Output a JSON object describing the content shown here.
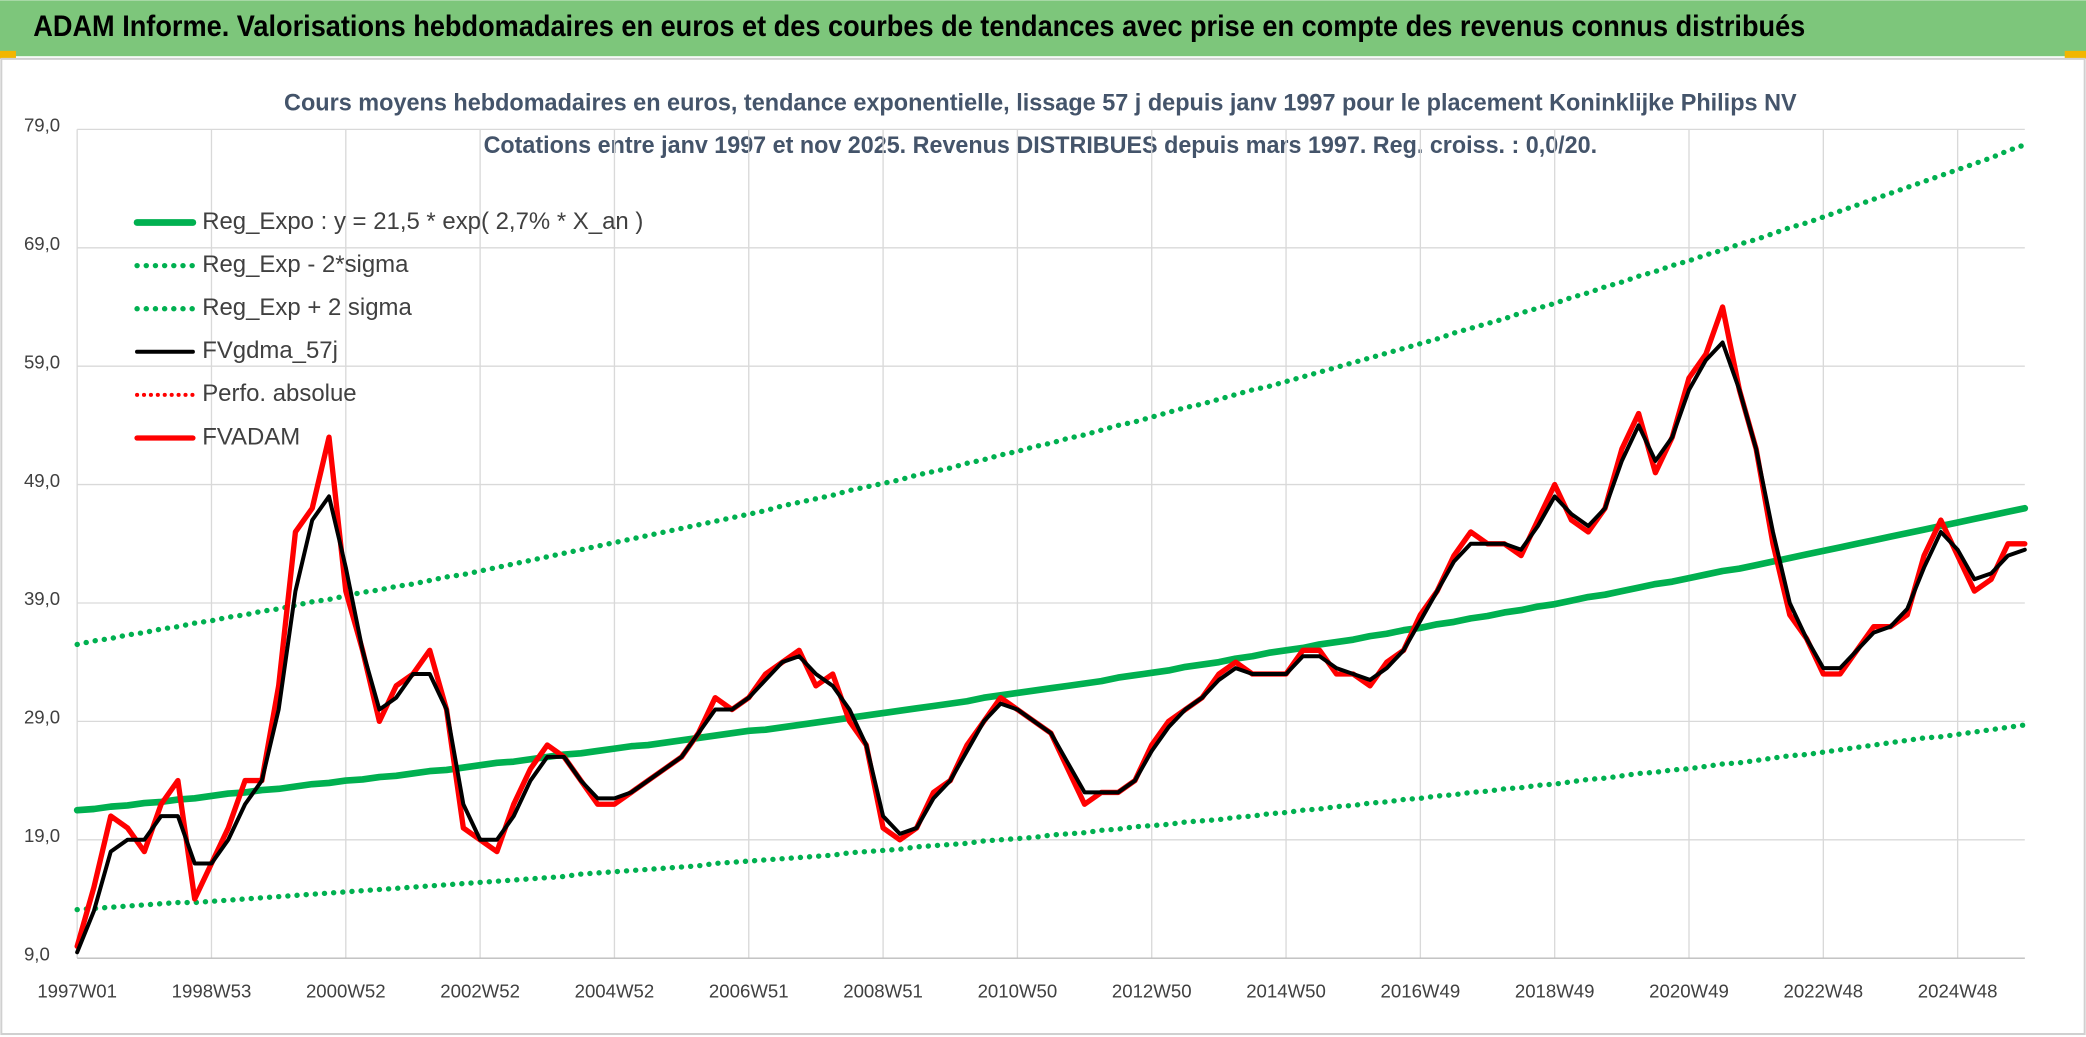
{
  "chart_data": {
    "type": "line",
    "title": "ADAM Informe. Valorisations hebdomadaires en euros et des courbes de tendances avec prise en compte des revenus connus distribués",
    "subtitle": [
      "Cours moyens hebdomadaires en euros, tendance exponentielle, lissage 57 j depuis janv 1997 pour le placement Koninklijke Philips NV",
      "Cotations entre janv 1997 et nov 2025. Revenus DISTRIBUES depuis mars 1997. Reg. croiss. : 0,0/20."
    ],
    "categories": [
      "1997W01",
      null,
      null,
      null,
      null,
      null,
      null,
      null,
      "1998W53",
      null,
      null,
      null,
      null,
      null,
      null,
      null,
      "2000W52",
      null,
      null,
      null,
      null,
      null,
      null,
      null,
      "2002W52",
      null,
      null,
      null,
      null,
      null,
      null,
      null,
      "2004W52",
      null,
      null,
      null,
      null,
      null,
      null,
      null,
      "2006W51",
      null,
      null,
      null,
      null,
      null,
      null,
      null,
      "2008W51",
      null,
      null,
      null,
      null,
      null,
      null,
      null,
      "2010W50",
      null,
      null,
      null,
      null,
      null,
      null,
      null,
      "2012W50",
      null,
      null,
      null,
      null,
      null,
      null,
      null,
      "2014W50",
      null,
      null,
      null,
      null,
      null,
      null,
      null,
      "2016W49",
      null,
      null,
      null,
      null,
      null,
      null,
      null,
      "2018W49",
      null,
      null,
      null,
      null,
      null,
      null,
      null,
      "2020W49",
      null,
      null,
      null,
      null,
      null,
      null,
      null,
      "2022W48",
      null,
      null,
      null,
      null,
      null,
      null,
      null,
      "2024W48",
      null,
      null,
      null,
      null
    ],
    "ylim": [
      9,
      79
    ],
    "yticks": [
      {
        "value": 9,
        "label": "9,0"
      },
      {
        "value": 19,
        "label": "19,0"
      },
      {
        "value": 29,
        "label": "29,0"
      },
      {
        "value": 39,
        "label": "39,0"
      },
      {
        "value": 49,
        "label": "49,0"
      },
      {
        "value": 59,
        "label": "59,0"
      },
      {
        "value": 69,
        "label": "69,0"
      },
      {
        "value": 79,
        "label": "79,0"
      }
    ],
    "grid": true,
    "legend": "upper left",
    "series": [
      {
        "name": "Reg_Expo : y = 21,5 * exp( 2,7% *  X_an )",
        "color": "#00b050",
        "style": "solid",
        "width": 5,
        "values": [
          21.5,
          21.6,
          21.8,
          21.9,
          22.1,
          22.2,
          22.4,
          22.5,
          22.7,
          22.9,
          23.0,
          23.2,
          23.3,
          23.5,
          23.7,
          23.8,
          24.0,
          24.1,
          24.3,
          24.4,
          24.6,
          24.8,
          24.9,
          25.1,
          25.3,
          25.5,
          25.6,
          25.8,
          26.0,
          26.2,
          26.3,
          26.5,
          26.7,
          26.9,
          27.0,
          27.2,
          27.4,
          27.6,
          27.8,
          28.0,
          28.2,
          28.3,
          28.5,
          28.7,
          28.9,
          29.1,
          29.3,
          29.5,
          29.7,
          29.9,
          30.1,
          30.3,
          30.5,
          30.7,
          31.0,
          31.2,
          31.4,
          31.6,
          31.8,
          32.0,
          32.2,
          32.4,
          32.7,
          32.9,
          33.1,
          33.3,
          33.6,
          33.8,
          34.0,
          34.3,
          34.5,
          34.8,
          35.0,
          35.2,
          35.5,
          35.7,
          35.9,
          36.2,
          36.4,
          36.7,
          36.9,
          37.2,
          37.4,
          37.7,
          37.9,
          38.2,
          38.4,
          38.7,
          38.9,
          39.2,
          39.5,
          39.7,
          40.0,
          40.3,
          40.6,
          40.8,
          41.1,
          41.4,
          41.7,
          41.9,
          42.2,
          42.5,
          42.8,
          43.1,
          43.4,
          43.7,
          44.0,
          44.3,
          44.6,
          44.9,
          45.2,
          45.5,
          45.8,
          46.1,
          46.4,
          46.7,
          47.0
        ]
      },
      {
        "name": "Reg_Exp - 2*sigma",
        "color": "#00b050",
        "style": "dotted",
        "width": 4,
        "values": [
          13.1,
          13.2,
          13.3,
          13.4,
          13.5,
          13.6,
          13.7,
          13.7,
          13.8,
          13.9,
          14.0,
          14.1,
          14.2,
          14.3,
          14.4,
          14.5,
          14.6,
          14.7,
          14.8,
          14.9,
          15.0,
          15.1,
          15.2,
          15.3,
          15.4,
          15.5,
          15.6,
          15.7,
          15.8,
          15.9,
          16.1,
          16.2,
          16.3,
          16.4,
          16.5,
          16.6,
          16.7,
          16.8,
          17.0,
          17.1,
          17.2,
          17.3,
          17.4,
          17.5,
          17.6,
          17.7,
          17.9,
          18.0,
          18.1,
          18.2,
          18.4,
          18.5,
          18.6,
          18.7,
          18.9,
          19.0,
          19.1,
          19.2,
          19.4,
          19.5,
          19.6,
          19.8,
          19.9,
          20.1,
          20.2,
          20.3,
          20.5,
          20.6,
          20.7,
          20.9,
          21.0,
          21.2,
          21.3,
          21.5,
          21.6,
          21.8,
          21.9,
          22.1,
          22.2,
          22.4,
          22.5,
          22.7,
          22.8,
          23.0,
          23.1,
          23.3,
          23.4,
          23.6,
          23.7,
          23.9,
          24.1,
          24.2,
          24.4,
          24.6,
          24.7,
          24.9,
          25.0,
          25.2,
          25.4,
          25.5,
          25.7,
          25.9,
          26.1,
          26.2,
          26.4,
          26.6,
          26.8,
          27.0,
          27.2,
          27.4,
          27.6,
          27.7,
          27.9,
          28.1,
          28.3,
          28.5,
          28.7
        ]
      },
      {
        "name": "Reg_Exp + 2 sigma",
        "color": "#00b050",
        "style": "dotted",
        "width": 4,
        "values": [
          35.5,
          35.8,
          36.0,
          36.3,
          36.5,
          36.8,
          37.0,
          37.3,
          37.5,
          37.8,
          38.0,
          38.3,
          38.5,
          38.8,
          39.1,
          39.3,
          39.6,
          39.9,
          40.1,
          40.4,
          40.6,
          40.9,
          41.2,
          41.4,
          41.7,
          42.0,
          42.3,
          42.6,
          42.9,
          43.2,
          43.5,
          43.8,
          44.1,
          44.4,
          44.7,
          45.0,
          45.3,
          45.6,
          45.9,
          46.2,
          46.5,
          46.8,
          47.2,
          47.5,
          47.8,
          48.1,
          48.5,
          48.8,
          49.1,
          49.4,
          49.8,
          50.1,
          50.4,
          50.8,
          51.1,
          51.5,
          51.8,
          52.2,
          52.5,
          52.9,
          53.2,
          53.6,
          54.0,
          54.3,
          54.7,
          55.1,
          55.5,
          55.8,
          56.2,
          56.6,
          57.0,
          57.3,
          57.7,
          58.1,
          58.5,
          58.9,
          59.3,
          59.7,
          60.1,
          60.5,
          60.9,
          61.3,
          61.8,
          62.2,
          62.6,
          63.0,
          63.5,
          63.9,
          64.3,
          64.8,
          65.2,
          65.7,
          66.1,
          66.6,
          67.0,
          67.5,
          67.9,
          68.4,
          68.8,
          69.3,
          69.7,
          70.2,
          70.7,
          71.1,
          71.6,
          72.1,
          72.6,
          73.1,
          73.6,
          74.1,
          74.6,
          75.1,
          75.6,
          76.1,
          76.6,
          77.2,
          77.7
        ]
      },
      {
        "name": "FVgdma_57j",
        "color": "#000000",
        "style": "solid",
        "width": 3,
        "values": [
          9.5,
          13,
          18,
          19,
          19,
          21,
          21,
          17,
          17,
          19,
          22,
          24,
          30,
          40,
          46,
          48,
          42,
          35,
          30,
          31,
          33,
          33,
          30,
          22,
          19,
          19,
          21,
          24,
          26,
          26,
          24,
          22.5,
          22.5,
          23,
          24,
          25,
          26,
          28,
          30,
          30,
          31,
          32.5,
          34,
          34.5,
          33,
          32,
          30,
          27,
          21,
          19.5,
          20,
          22.5,
          24,
          26.5,
          29,
          30.5,
          30,
          29,
          28,
          25.5,
          23,
          23,
          23,
          24,
          26.5,
          28.5,
          30,
          31,
          32.5,
          33.5,
          33,
          33,
          33,
          34.5,
          34.5,
          33.5,
          33,
          32.5,
          33.5,
          35,
          37.5,
          40,
          42.5,
          44,
          44,
          44,
          43.5,
          45.5,
          48,
          46.5,
          45.5,
          47,
          51,
          54,
          51,
          53,
          57,
          59.5,
          61,
          57,
          52,
          45,
          39,
          36,
          33.5,
          33.5,
          35,
          36.5,
          37,
          38.5,
          42,
          45,
          43.5,
          41,
          41.5,
          43,
          43.5
        ]
      },
      {
        "name": "Perfo. absolue",
        "color": "#ff0000",
        "style": "dotted",
        "width": 3,
        "values": [
          null,
          null,
          null,
          null,
          null,
          null,
          null,
          null,
          null,
          null,
          null,
          null,
          null,
          null,
          null,
          null,
          null,
          null,
          null,
          null,
          null,
          null,
          null,
          null,
          null,
          null,
          null,
          null,
          null,
          null,
          null,
          null,
          null,
          null,
          null,
          null,
          null,
          null,
          null,
          null,
          null,
          null,
          null,
          null,
          null,
          null,
          null,
          null,
          null,
          null,
          null,
          null,
          null,
          null,
          null,
          null,
          null,
          null,
          null,
          null,
          null,
          null,
          null,
          null,
          null,
          null,
          null,
          null,
          null,
          null,
          null,
          null,
          null,
          null,
          null,
          null,
          null,
          null,
          null,
          null,
          null,
          null,
          null,
          null,
          null,
          null,
          null,
          null,
          null,
          null,
          null,
          null,
          null,
          null,
          null,
          null,
          null,
          null,
          null,
          null,
          null,
          null,
          null,
          null,
          null,
          null,
          null,
          null,
          null,
          null,
          null,
          null,
          null,
          null,
          null,
          null,
          null
        ]
      },
      {
        "name": "FVADAM",
        "color": "#ff0000",
        "style": "solid",
        "width": 4,
        "values": [
          10,
          15,
          21,
          20,
          18,
          22,
          24,
          14,
          17,
          20,
          24,
          24,
          32,
          45,
          47,
          53,
          40,
          35,
          29,
          32,
          33,
          35,
          30,
          20,
          19,
          18,
          22,
          25,
          27,
          26,
          24,
          22,
          22,
          23,
          24,
          25,
          26,
          28,
          31,
          30,
          31,
          33,
          34,
          35,
          32,
          33,
          29,
          27,
          20,
          19,
          20,
          23,
          24,
          27,
          29,
          31,
          30,
          29,
          28,
          25,
          22,
          23,
          23,
          24,
          27,
          29,
          30,
          31,
          33,
          34,
          33,
          33,
          33,
          35,
          35,
          33,
          33,
          32,
          34,
          35,
          38,
          40,
          43,
          45,
          44,
          44,
          43,
          46,
          49,
          46,
          45,
          47,
          52,
          55,
          50,
          53,
          58,
          60,
          64,
          57,
          52,
          44,
          38,
          36,
          33,
          33,
          35,
          37,
          37,
          38,
          43,
          46,
          43,
          40,
          41,
          44,
          44
        ]
      }
    ]
  }
}
